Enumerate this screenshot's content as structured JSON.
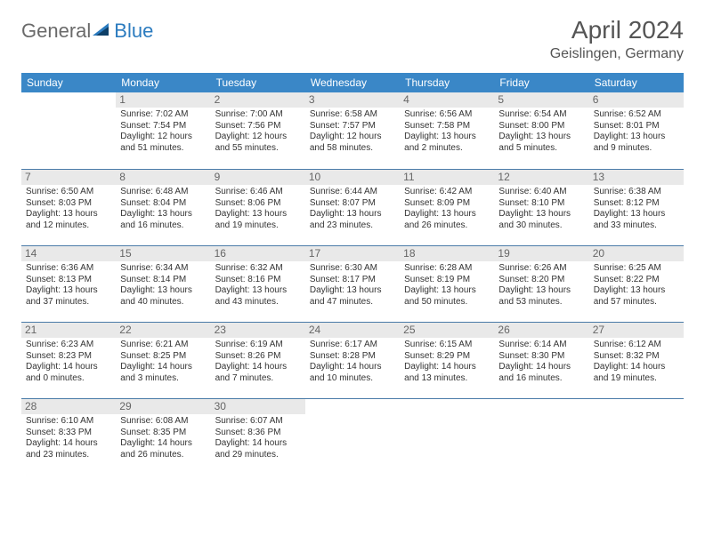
{
  "logo": {
    "text1": "General",
    "text2": "Blue"
  },
  "title": "April 2024",
  "location": "Geislingen, Germany",
  "colors": {
    "header_bg": "#3a87c7",
    "header_text": "#ffffff",
    "daynum_bg": "#e9e9e9",
    "daynum_text": "#666666",
    "body_text": "#333333",
    "rule": "#4a7ba8",
    "logo_gray": "#6a6a6a",
    "logo_blue": "#2b7bbf",
    "title_color": "#555555"
  },
  "dayNames": [
    "Sunday",
    "Monday",
    "Tuesday",
    "Wednesday",
    "Thursday",
    "Friday",
    "Saturday"
  ],
  "startOffset": 1,
  "daysInMonth": 30,
  "totalCells": 35,
  "days": {
    "1": {
      "sunrise": "7:02 AM",
      "sunset": "7:54 PM",
      "daylight": "12 hours and 51 minutes."
    },
    "2": {
      "sunrise": "7:00 AM",
      "sunset": "7:56 PM",
      "daylight": "12 hours and 55 minutes."
    },
    "3": {
      "sunrise": "6:58 AM",
      "sunset": "7:57 PM",
      "daylight": "12 hours and 58 minutes."
    },
    "4": {
      "sunrise": "6:56 AM",
      "sunset": "7:58 PM",
      "daylight": "13 hours and 2 minutes."
    },
    "5": {
      "sunrise": "6:54 AM",
      "sunset": "8:00 PM",
      "daylight": "13 hours and 5 minutes."
    },
    "6": {
      "sunrise": "6:52 AM",
      "sunset": "8:01 PM",
      "daylight": "13 hours and 9 minutes."
    },
    "7": {
      "sunrise": "6:50 AM",
      "sunset": "8:03 PM",
      "daylight": "13 hours and 12 minutes."
    },
    "8": {
      "sunrise": "6:48 AM",
      "sunset": "8:04 PM",
      "daylight": "13 hours and 16 minutes."
    },
    "9": {
      "sunrise": "6:46 AM",
      "sunset": "8:06 PM",
      "daylight": "13 hours and 19 minutes."
    },
    "10": {
      "sunrise": "6:44 AM",
      "sunset": "8:07 PM",
      "daylight": "13 hours and 23 minutes."
    },
    "11": {
      "sunrise": "6:42 AM",
      "sunset": "8:09 PM",
      "daylight": "13 hours and 26 minutes."
    },
    "12": {
      "sunrise": "6:40 AM",
      "sunset": "8:10 PM",
      "daylight": "13 hours and 30 minutes."
    },
    "13": {
      "sunrise": "6:38 AM",
      "sunset": "8:12 PM",
      "daylight": "13 hours and 33 minutes."
    },
    "14": {
      "sunrise": "6:36 AM",
      "sunset": "8:13 PM",
      "daylight": "13 hours and 37 minutes."
    },
    "15": {
      "sunrise": "6:34 AM",
      "sunset": "8:14 PM",
      "daylight": "13 hours and 40 minutes."
    },
    "16": {
      "sunrise": "6:32 AM",
      "sunset": "8:16 PM",
      "daylight": "13 hours and 43 minutes."
    },
    "17": {
      "sunrise": "6:30 AM",
      "sunset": "8:17 PM",
      "daylight": "13 hours and 47 minutes."
    },
    "18": {
      "sunrise": "6:28 AM",
      "sunset": "8:19 PM",
      "daylight": "13 hours and 50 minutes."
    },
    "19": {
      "sunrise": "6:26 AM",
      "sunset": "8:20 PM",
      "daylight": "13 hours and 53 minutes."
    },
    "20": {
      "sunrise": "6:25 AM",
      "sunset": "8:22 PM",
      "daylight": "13 hours and 57 minutes."
    },
    "21": {
      "sunrise": "6:23 AM",
      "sunset": "8:23 PM",
      "daylight": "14 hours and 0 minutes."
    },
    "22": {
      "sunrise": "6:21 AM",
      "sunset": "8:25 PM",
      "daylight": "14 hours and 3 minutes."
    },
    "23": {
      "sunrise": "6:19 AM",
      "sunset": "8:26 PM",
      "daylight": "14 hours and 7 minutes."
    },
    "24": {
      "sunrise": "6:17 AM",
      "sunset": "8:28 PM",
      "daylight": "14 hours and 10 minutes."
    },
    "25": {
      "sunrise": "6:15 AM",
      "sunset": "8:29 PM",
      "daylight": "14 hours and 13 minutes."
    },
    "26": {
      "sunrise": "6:14 AM",
      "sunset": "8:30 PM",
      "daylight": "14 hours and 16 minutes."
    },
    "27": {
      "sunrise": "6:12 AM",
      "sunset": "8:32 PM",
      "daylight": "14 hours and 19 minutes."
    },
    "28": {
      "sunrise": "6:10 AM",
      "sunset": "8:33 PM",
      "daylight": "14 hours and 23 minutes."
    },
    "29": {
      "sunrise": "6:08 AM",
      "sunset": "8:35 PM",
      "daylight": "14 hours and 26 minutes."
    },
    "30": {
      "sunrise": "6:07 AM",
      "sunset": "8:36 PM",
      "daylight": "14 hours and 29 minutes."
    }
  },
  "labels": {
    "sunrise": "Sunrise:",
    "sunset": "Sunset:",
    "daylight": "Daylight:"
  }
}
